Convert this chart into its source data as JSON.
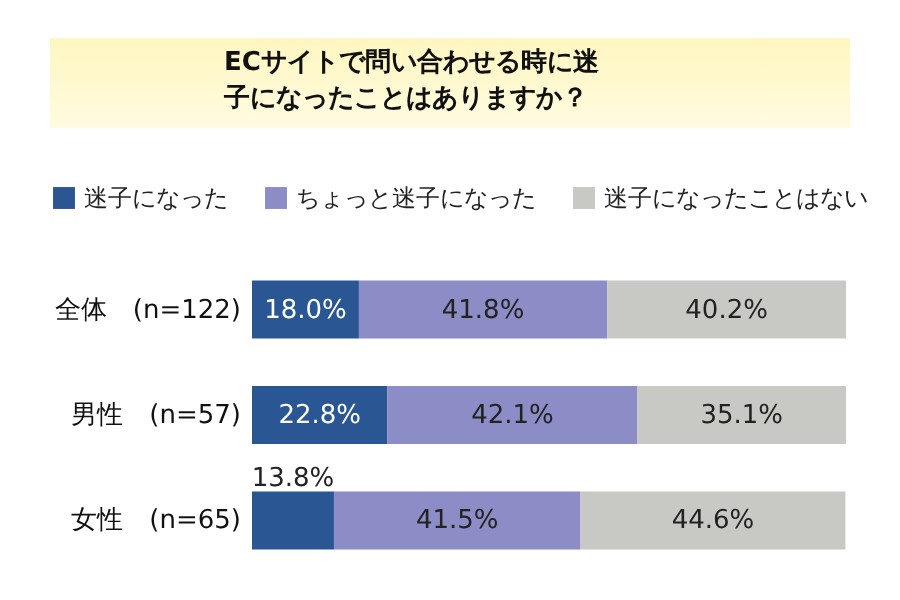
{
  "chart_data": {
    "type": "bar",
    "orientation": "horizontal",
    "stacked": true,
    "title": "ECサイトで問い合わせる時に迷子になったことはありますか？",
    "legend": "top left",
    "categories": [
      "全体　(n=122)",
      "男性　(n=57)",
      "女性　(n=65)"
    ],
    "series": [
      {
        "name": "迷子になった",
        "color": "#2a5794",
        "values": [
          18.0,
          22.8,
          13.8
        ],
        "value_labels": [
          "18.0%",
          "22.8%",
          "13.8%"
        ]
      },
      {
        "name": "ちょっと迷子になった",
        "color": "#8c8cc6",
        "values": [
          41.8,
          42.1,
          41.5
        ],
        "value_labels": [
          "41.8%",
          "42.1%",
          "41.5%"
        ]
      },
      {
        "name": "迷子になったことはない",
        "color": "#c8c8c5",
        "values": [
          40.2,
          35.1,
          44.6
        ],
        "value_labels": [
          "40.2%",
          "35.1%",
          "44.6%"
        ]
      }
    ]
  }
}
